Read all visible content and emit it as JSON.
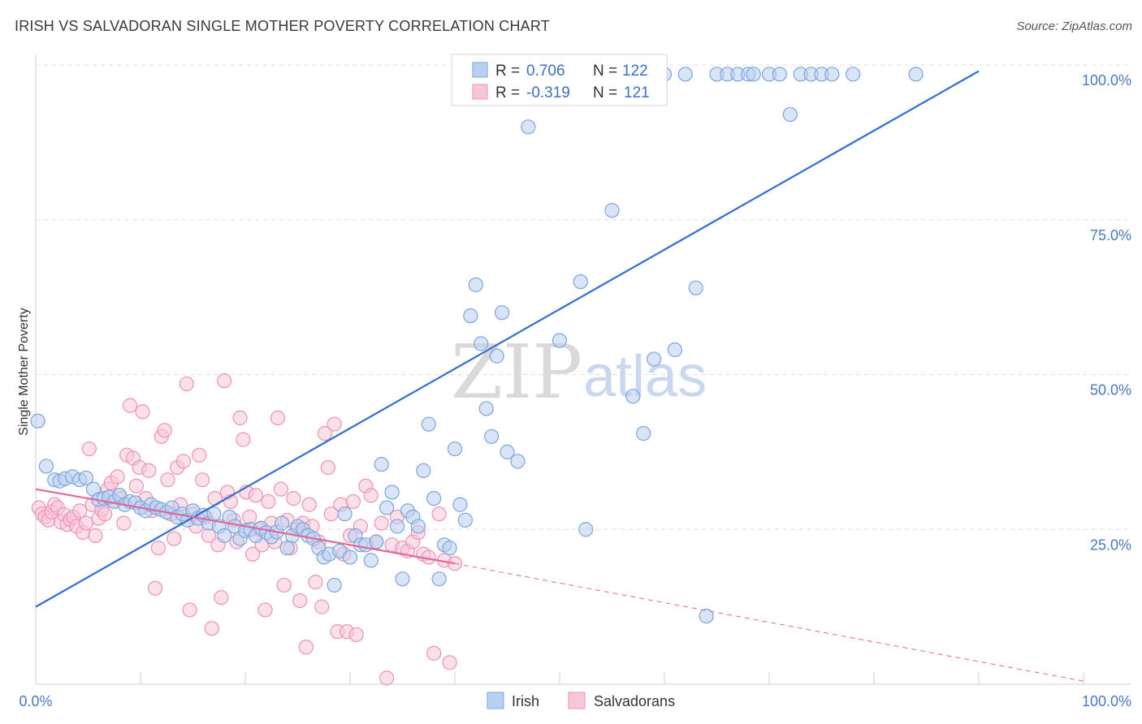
{
  "title": "IRISH VS SALVADORAN SINGLE MOTHER POVERTY CORRELATION CHART",
  "source": "Source: ZipAtlas.com",
  "watermark": {
    "zip": "ZIP",
    "atlas": "atlas"
  },
  "colors": {
    "irish": "#7aa5e0",
    "irish_fill": "#b9d0f0",
    "irish_line": "#2f6fd1",
    "salvadoran": "#ee92b4",
    "salvadoran_fill": "#f7c6d8",
    "salvadoran_line": "#e2679a",
    "tick_text": "#4a78c4"
  },
  "legend": {
    "rows": [
      {
        "r_label": "R =",
        "r_value": "0.706",
        "n_label": "N =",
        "n_value": "122"
      },
      {
        "r_label": "R =",
        "r_value": "-0.319",
        "n_label": "N =",
        "n_value": "121"
      }
    ]
  },
  "bottom_legend": [
    "Irish",
    "Salvadorans"
  ],
  "chart_data": {
    "type": "scatter",
    "title": "IRISH VS SALVADORAN SINGLE MOTHER POVERTY CORRELATION CHART",
    "xlabel": "",
    "ylabel": "Single Mother Poverty",
    "xlim": [
      0,
      100
    ],
    "ylim": [
      0,
      100
    ],
    "x_tick_labels": [
      "0.0%",
      "100.0%"
    ],
    "y_ticks": [
      25,
      50,
      75,
      100
    ],
    "y_tick_labels": [
      "25.0%",
      "50.0%",
      "75.0%",
      "100.0%"
    ],
    "grid": "horizontal dashed",
    "legend_placement": "top-center",
    "series": [
      {
        "name": "Irish",
        "r": 0.706,
        "n": 122,
        "trend": {
          "x": [
            0,
            90
          ],
          "y": [
            12.5,
            99
          ]
        },
        "points": [
          [
            0.2,
            42.5
          ],
          [
            1.0,
            35.2
          ],
          [
            1.8,
            33.0
          ],
          [
            2.3,
            32.8
          ],
          [
            2.8,
            33.2
          ],
          [
            3.5,
            33.5
          ],
          [
            4.2,
            33.0
          ],
          [
            4.8,
            33.3
          ],
          [
            5.5,
            31.5
          ],
          [
            6.0,
            29.8
          ],
          [
            6.5,
            30.0
          ],
          [
            7.0,
            30.2
          ],
          [
            7.5,
            29.5
          ],
          [
            8.0,
            30.5
          ],
          [
            8.5,
            29.0
          ],
          [
            9.0,
            29.5
          ],
          [
            9.5,
            29.3
          ],
          [
            10.0,
            28.5
          ],
          [
            10.5,
            28.0
          ],
          [
            11.0,
            29.0
          ],
          [
            11.5,
            28.5
          ],
          [
            12.0,
            28.2
          ],
          [
            12.5,
            27.8
          ],
          [
            13.0,
            28.5
          ],
          [
            13.5,
            27.0
          ],
          [
            14.0,
            27.5
          ],
          [
            14.5,
            26.5
          ],
          [
            15.0,
            28.0
          ],
          [
            15.5,
            26.8
          ],
          [
            16.0,
            27.3
          ],
          [
            16.5,
            26.0
          ],
          [
            17.0,
            27.5
          ],
          [
            17.5,
            25.5
          ],
          [
            18.0,
            24.0
          ],
          [
            18.5,
            27.0
          ],
          [
            19.0,
            25.5
          ],
          [
            19.5,
            23.5
          ],
          [
            20.0,
            24.8
          ],
          [
            20.5,
            25.0
          ],
          [
            21.0,
            24.0
          ],
          [
            21.5,
            25.2
          ],
          [
            22.0,
            24.5
          ],
          [
            22.5,
            23.8
          ],
          [
            23.0,
            24.6
          ],
          [
            23.5,
            26.0
          ],
          [
            24.0,
            22.0
          ],
          [
            24.5,
            24.0
          ],
          [
            25.0,
            25.5
          ],
          [
            25.5,
            25.0
          ],
          [
            26.0,
            24.0
          ],
          [
            26.5,
            23.5
          ],
          [
            27.0,
            22.0
          ],
          [
            27.5,
            20.5
          ],
          [
            28.0,
            21.0
          ],
          [
            28.5,
            16.0
          ],
          [
            29.0,
            21.5
          ],
          [
            29.5,
            27.5
          ],
          [
            30.0,
            20.5
          ],
          [
            30.5,
            24.0
          ],
          [
            31.0,
            22.5
          ],
          [
            31.5,
            22.5
          ],
          [
            32.0,
            20.0
          ],
          [
            32.5,
            23.0
          ],
          [
            33.0,
            35.5
          ],
          [
            33.5,
            28.5
          ],
          [
            34.0,
            31.0
          ],
          [
            34.5,
            25.5
          ],
          [
            35.0,
            17.0
          ],
          [
            35.5,
            28.0
          ],
          [
            36.0,
            27.0
          ],
          [
            36.5,
            25.5
          ],
          [
            37.0,
            34.5
          ],
          [
            37.5,
            42.0
          ],
          [
            38.0,
            30.0
          ],
          [
            38.5,
            17.0
          ],
          [
            39.0,
            22.5
          ],
          [
            39.5,
            22.0
          ],
          [
            40.0,
            38.0
          ],
          [
            40.5,
            29.0
          ],
          [
            41.0,
            26.5
          ],
          [
            41.5,
            59.5
          ],
          [
            42.0,
            64.5
          ],
          [
            42.5,
            55.0
          ],
          [
            43.0,
            44.5
          ],
          [
            43.5,
            40.0
          ],
          [
            44.0,
            53.0
          ],
          [
            44.5,
            60.0
          ],
          [
            45.0,
            37.5
          ],
          [
            46.0,
            36.0
          ],
          [
            47.0,
            90.0
          ],
          [
            48.0,
            98.5
          ],
          [
            49.0,
            98.5
          ],
          [
            50.0,
            55.5
          ],
          [
            51.0,
            98.5
          ],
          [
            52.0,
            65.0
          ],
          [
            52.5,
            25.0
          ],
          [
            53.0,
            98.5
          ],
          [
            54.0,
            98.5
          ],
          [
            55.0,
            76.5
          ],
          [
            56.0,
            98.5
          ],
          [
            57.0,
            46.5
          ],
          [
            58.0,
            40.5
          ],
          [
            59.0,
            52.5
          ],
          [
            60.0,
            98.5
          ],
          [
            61.0,
            54.0
          ],
          [
            62.0,
            98.5
          ],
          [
            63.0,
            64.0
          ],
          [
            64.0,
            11.0
          ],
          [
            65.0,
            98.5
          ],
          [
            66.0,
            98.5
          ],
          [
            67.0,
            98.5
          ],
          [
            68.0,
            98.5
          ],
          [
            68.5,
            98.5
          ],
          [
            70.0,
            98.5
          ],
          [
            71.0,
            98.5
          ],
          [
            72.0,
            92.0
          ],
          [
            73.0,
            98.5
          ],
          [
            74.0,
            98.5
          ],
          [
            75.0,
            98.5
          ],
          [
            76.0,
            98.5
          ],
          [
            78.0,
            98.5
          ],
          [
            84.0,
            98.5
          ]
        ]
      },
      {
        "name": "Salvadorans",
        "r": -0.319,
        "n": 121,
        "trend": {
          "x": [
            0,
            40
          ],
          "y": [
            31.5,
            19.5
          ]
        },
        "trend_extension": {
          "x": [
            40,
            100
          ],
          "y": [
            19.5,
            0.5
          ]
        },
        "points": [
          [
            0.3,
            28.5
          ],
          [
            0.6,
            27.5
          ],
          [
            0.9,
            27.0
          ],
          [
            1.2,
            26.5
          ],
          [
            1.5,
            27.8
          ],
          [
            1.8,
            29.0
          ],
          [
            2.1,
            28.5
          ],
          [
            2.4,
            26.2
          ],
          [
            2.7,
            27.4
          ],
          [
            3.0,
            25.8
          ],
          [
            3.3,
            26.6
          ],
          [
            3.6,
            27.0
          ],
          [
            3.9,
            25.5
          ],
          [
            4.2,
            28.0
          ],
          [
            4.5,
            24.5
          ],
          [
            4.8,
            26.0
          ],
          [
            5.1,
            38.0
          ],
          [
            5.4,
            29.0
          ],
          [
            5.7,
            24.0
          ],
          [
            6.0,
            26.8
          ],
          [
            6.3,
            28.2
          ],
          [
            6.6,
            27.5
          ],
          [
            6.9,
            31.5
          ],
          [
            7.2,
            32.5
          ],
          [
            7.5,
            29.5
          ],
          [
            7.8,
            33.5
          ],
          [
            8.1,
            30.0
          ],
          [
            8.4,
            26.0
          ],
          [
            8.7,
            37.0
          ],
          [
            9.0,
            45.0
          ],
          [
            9.3,
            36.5
          ],
          [
            9.6,
            32.0
          ],
          [
            9.9,
            35.0
          ],
          [
            10.2,
            44.0
          ],
          [
            10.5,
            30.0
          ],
          [
            10.8,
            34.5
          ],
          [
            11.1,
            28.0
          ],
          [
            11.4,
            15.5
          ],
          [
            11.7,
            22.0
          ],
          [
            12.0,
            40.0
          ],
          [
            12.3,
            41.0
          ],
          [
            12.6,
            33.0
          ],
          [
            12.9,
            27.5
          ],
          [
            13.2,
            23.5
          ],
          [
            13.5,
            35.0
          ],
          [
            13.8,
            29.0
          ],
          [
            14.1,
            36.0
          ],
          [
            14.4,
            48.5
          ],
          [
            14.7,
            12.0
          ],
          [
            15.0,
            27.5
          ],
          [
            15.3,
            25.5
          ],
          [
            15.6,
            37.0
          ],
          [
            15.9,
            33.0
          ],
          [
            16.2,
            27.0
          ],
          [
            16.5,
            24.0
          ],
          [
            16.8,
            9.0
          ],
          [
            17.1,
            30.0
          ],
          [
            17.4,
            22.5
          ],
          [
            17.7,
            14.0
          ],
          [
            18.0,
            49.0
          ],
          [
            18.3,
            31.0
          ],
          [
            18.6,
            29.5
          ],
          [
            18.9,
            26.5
          ],
          [
            19.2,
            23.0
          ],
          [
            19.5,
            43.0
          ],
          [
            19.8,
            39.5
          ],
          [
            20.1,
            31.0
          ],
          [
            20.4,
            27.0
          ],
          [
            20.7,
            21.0
          ],
          [
            21.0,
            30.5
          ],
          [
            21.3,
            25.0
          ],
          [
            21.6,
            22.5
          ],
          [
            21.9,
            12.0
          ],
          [
            22.2,
            29.5
          ],
          [
            22.5,
            26.0
          ],
          [
            22.8,
            23.0
          ],
          [
            23.1,
            43.0
          ],
          [
            23.4,
            31.5
          ],
          [
            23.7,
            16.0
          ],
          [
            24.0,
            26.5
          ],
          [
            24.3,
            22.0
          ],
          [
            24.6,
            30.0
          ],
          [
            24.9,
            25.0
          ],
          [
            25.2,
            13.5
          ],
          [
            25.5,
            26.0
          ],
          [
            25.8,
            6.0
          ],
          [
            26.1,
            29.0
          ],
          [
            26.4,
            25.5
          ],
          [
            26.7,
            16.5
          ],
          [
            27.0,
            23.0
          ],
          [
            27.3,
            12.5
          ],
          [
            27.6,
            40.5
          ],
          [
            27.9,
            35.0
          ],
          [
            28.2,
            27.5
          ],
          [
            28.5,
            42.0
          ],
          [
            28.8,
            8.5
          ],
          [
            29.1,
            29.0
          ],
          [
            29.4,
            21.0
          ],
          [
            29.7,
            8.5
          ],
          [
            30.0,
            24.0
          ],
          [
            30.3,
            29.5
          ],
          [
            30.6,
            8.0
          ],
          [
            31.0,
            25.5
          ],
          [
            31.5,
            32.0
          ],
          [
            32.0,
            30.5
          ],
          [
            32.5,
            23.0
          ],
          [
            33.0,
            26.0
          ],
          [
            33.5,
            1.0
          ],
          [
            34.0,
            22.5
          ],
          [
            34.5,
            27.0
          ],
          [
            35.0,
            22.0
          ],
          [
            35.5,
            21.5
          ],
          [
            36.0,
            23.0
          ],
          [
            36.5,
            24.5
          ],
          [
            37.0,
            21.0
          ],
          [
            37.5,
            20.5
          ],
          [
            38.0,
            5.0
          ],
          [
            38.5,
            27.5
          ],
          [
            39.0,
            20.0
          ],
          [
            39.5,
            3.5
          ],
          [
            40.0,
            19.5
          ]
        ]
      }
    ]
  }
}
